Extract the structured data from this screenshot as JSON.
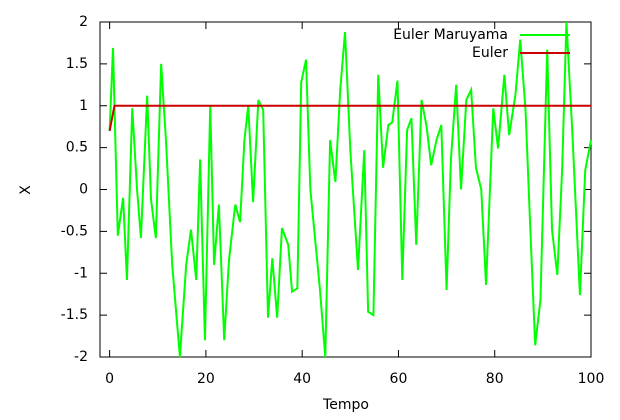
{
  "chart_data": {
    "type": "line",
    "xlabel": "Tempo",
    "ylabel": "X",
    "xlim": [
      -2,
      100
    ],
    "ylim": [
      -2,
      2
    ],
    "xticks": [
      0,
      20,
      40,
      60,
      80,
      100
    ],
    "yticks": [
      -2,
      -1.5,
      -1,
      -0.5,
      0,
      0.5,
      1,
      1.5,
      2
    ],
    "legend": "top-right",
    "series": [
      {
        "name": "Euler Maruyama",
        "color": "#00ff00",
        "x": [
          0,
          0.7,
          1.7,
          2.8,
          3.6,
          4.7,
          5.7,
          6.5,
          7.8,
          8.6,
          9.6,
          10.7,
          11.7,
          13,
          14.6,
          15.9,
          16.9,
          18,
          18.8,
          19.8,
          20.9,
          21.7,
          22.7,
          23.8,
          24.8,
          26.1,
          27.1,
          28,
          28.8,
          29.8,
          30.9,
          31.9,
          32.9,
          33.8,
          34.8,
          35.8,
          37.1,
          37.9,
          39,
          39.8,
          40.8,
          41.7,
          42.7,
          43.7,
          44.8,
          45.8,
          46.9,
          47.9,
          48.9,
          50,
          51.6,
          52.9,
          53.7,
          54.8,
          55.8,
          56.8,
          57.9,
          58.7,
          59.8,
          60.8,
          61.8,
          62.7,
          63.7,
          64.8,
          65.8,
          66.8,
          67.9,
          68.9,
          70,
          70.9,
          72,
          73,
          74.1,
          75.1,
          76.1,
          77.2,
          78.2,
          79.7,
          80.7,
          82,
          83,
          84.3,
          85.3,
          86.4,
          87.4,
          88.4,
          89.5,
          90.9,
          91.9,
          93,
          94,
          94.9,
          96.1,
          97.7,
          98.8,
          100
        ],
        "values": [
          0.7,
          1.69,
          -0.55,
          -0.1,
          -1.08,
          0.97,
          0,
          -0.58,
          1.12,
          -0.12,
          -0.58,
          1.5,
          0.59,
          -0.9,
          -2,
          -0.9,
          -0.48,
          -1.08,
          0.36,
          -1.8,
          1.0,
          -0.9,
          -0.18,
          -1.8,
          -0.84,
          -0.18,
          -0.39,
          0.59,
          1.0,
          -0.15,
          1.07,
          0.95,
          -1.53,
          -0.82,
          -1.53,
          -0.46,
          -0.66,
          -1.22,
          -1.18,
          1.28,
          1.55,
          0,
          -0.6,
          -1.2,
          -2,
          0.59,
          0.09,
          1.19,
          1.88,
          0.47,
          -0.96,
          0.47,
          -1.46,
          -1.5,
          1.37,
          0.26,
          0.77,
          0.8,
          1.3,
          -1.08,
          0.71,
          0.85,
          -0.66,
          1.07,
          0.77,
          0.29,
          0.59,
          0.77,
          -1.2,
          0.36,
          1.25,
          0,
          1.07,
          1.19,
          0.26,
          0,
          -1.14,
          0.97,
          0.49,
          1.37,
          0.65,
          1.13,
          1.79,
          0.95,
          -0.48,
          -1.86,
          -1.32,
          1.67,
          -0.48,
          -1.02,
          0.23,
          2.0,
          0.71,
          -1.26,
          0.23,
          0.59
        ]
      },
      {
        "name": "Euler",
        "color": "#cc0000",
        "x": [
          0,
          1,
          100
        ],
        "values": [
          0.7,
          1,
          1
        ]
      }
    ]
  }
}
